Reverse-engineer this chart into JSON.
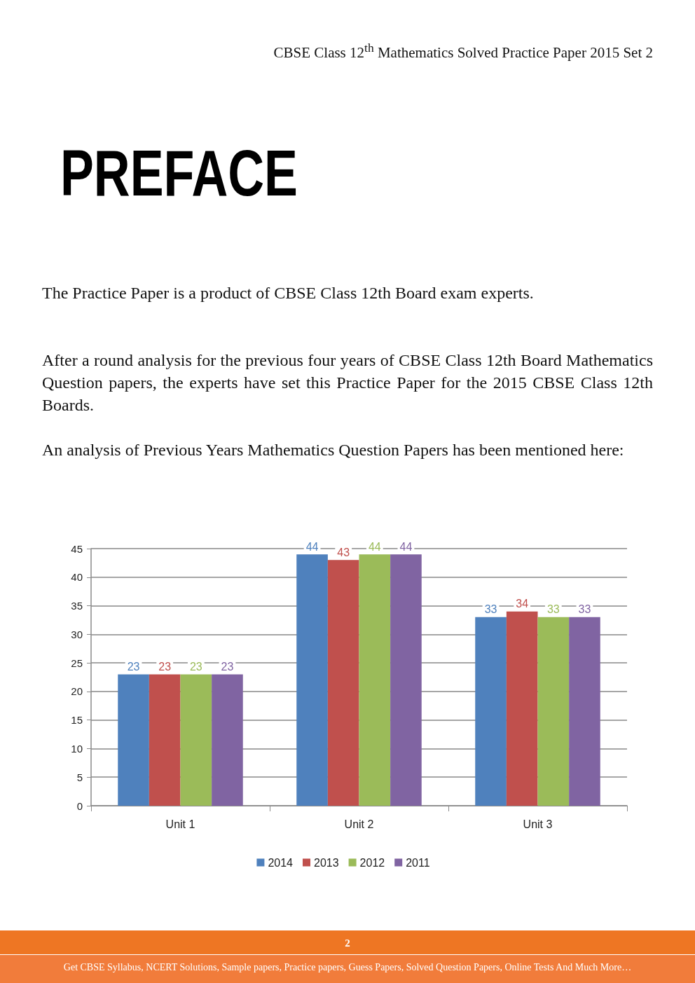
{
  "chart_data": {
    "type": "bar",
    "title": "PREFACE",
    "categories": [
      "Unit 1",
      "Unit 2",
      "Unit 3"
    ],
    "series": [
      {
        "name": "2014",
        "color": "#4f81bd",
        "values": [
          23,
          44,
          33
        ]
      },
      {
        "name": "2013",
        "color": "#c0504d",
        "values": [
          23,
          43,
          34
        ]
      },
      {
        "name": "2012",
        "color": "#9bbb59",
        "values": [
          23,
          44,
          33
        ]
      },
      {
        "name": "2011",
        "color": "#8064a2",
        "values": [
          23,
          44,
          33
        ]
      }
    ],
    "ylim": [
      0,
      45
    ],
    "yticks": [
      0,
      5,
      10,
      15,
      20,
      25,
      30,
      35,
      40,
      45
    ],
    "grid": "y",
    "legend": "bottom",
    "data_labels": true,
    "annotations": [
      "CBSE Class 12$^{th}$ Mathematics Solved Practice Paper 2015 Set 2",
      "The Practice Paper is a product of CBSE Class 12th Board exam experts.",
      "After a round analysis for the previous four years of CBSE Class 12th Board Mathematics Question papers, the experts have set this Practice Paper for the 2015 CBSE Class 12th Boards.",
      "An analysis of Previous Years Mathematics Question Papers has been mentioned here:",
      "2",
      "Get CBSE Syllabus, NCERT Solutions, Sample papers, Practice papers, Guess Papers, Solved Question Papers, Online Tests And Much More…"
    ]
  }
}
